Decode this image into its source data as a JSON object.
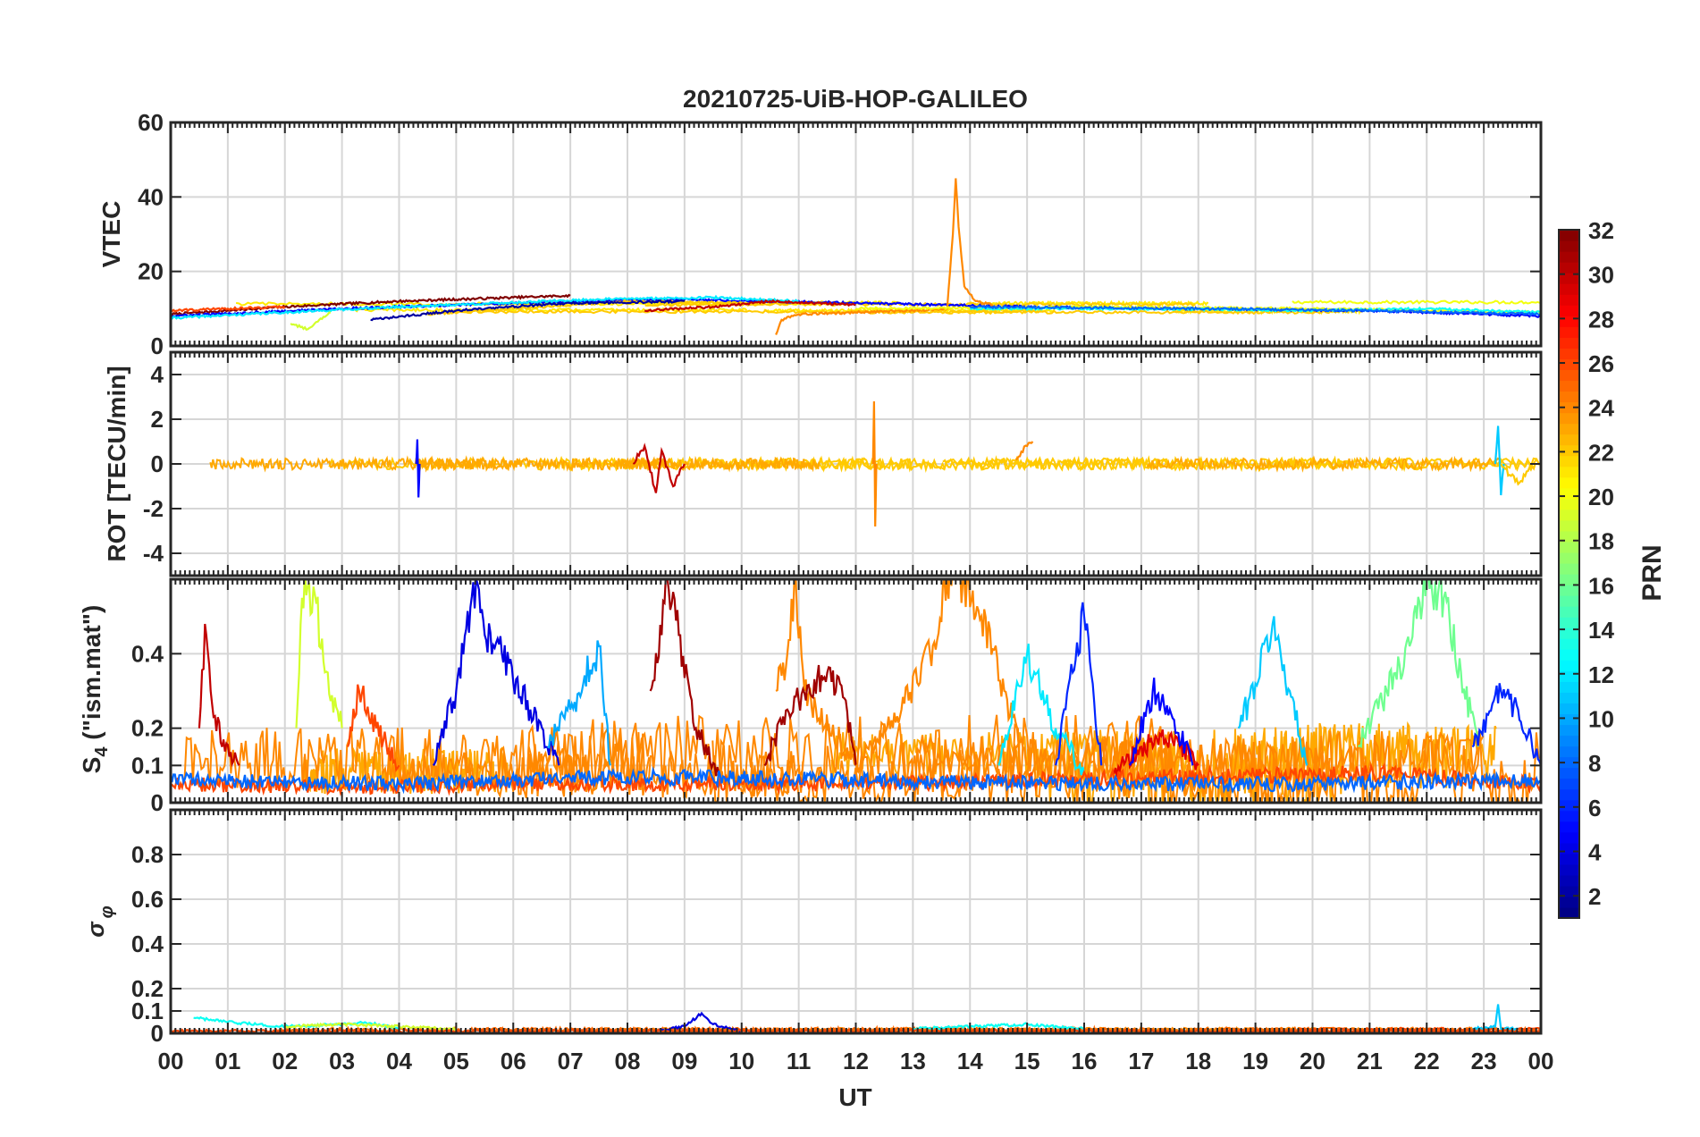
{
  "chart_data": {
    "type": "line",
    "title": "20210725-UiB-HOP-GALILEO",
    "xlabel": "UT",
    "xlim": [
      0,
      24
    ],
    "x_ticks": [
      "00",
      "01",
      "02",
      "03",
      "04",
      "05",
      "06",
      "07",
      "08",
      "09",
      "10",
      "11",
      "12",
      "13",
      "14",
      "15",
      "16",
      "17",
      "18",
      "19",
      "20",
      "21",
      "22",
      "23",
      "00"
    ],
    "colorbar": {
      "label": "PRN",
      "range": [
        1,
        32
      ],
      "colormap": "jet",
      "tick_labels": [
        "2",
        "4",
        "6",
        "8",
        "10",
        "12",
        "14",
        "16",
        "18",
        "20",
        "22",
        "24",
        "26",
        "28",
        "30",
        "32"
      ]
    },
    "panels": [
      {
        "id": "vtec",
        "ylabel": "VTEC",
        "ylim": [
          0,
          60
        ],
        "y_ticks": [
          0,
          20,
          40,
          60
        ],
        "y_tick_labels": [
          "0",
          "20",
          "40",
          "60"
        ],
        "series": [
          {
            "prn": 32,
            "x": [
              0.0,
              2.0,
              4.0,
              6.0,
              7.0
            ],
            "y": [
              8.5,
              10.5,
              12.0,
              13.0,
              13.5
            ]
          },
          {
            "prn": 5,
            "x": [
              0.0,
              3.0,
              6.0,
              9.0,
              12.0,
              15.0,
              18.0,
              21.0,
              24.0
            ],
            "y": [
              8.0,
              10.0,
              11.5,
              12.5,
              11.5,
              10.5,
              10.0,
              9.5,
              8.0
            ]
          },
          {
            "prn": 12,
            "x": [
              0.0,
              2.0,
              4.0,
              7.5,
              9.5,
              11.0
            ],
            "y": [
              7.5,
              9.0,
              10.5,
              12.5,
              13.0,
              12.0
            ]
          },
          {
            "prn": 19,
            "x": [
              2.1,
              2.4,
              2.6,
              2.8
            ],
            "y": [
              6.0,
              4.5,
              7.0,
              9.0
            ]
          },
          {
            "prn": 22,
            "x": [
              4.5,
              6.0,
              8.0,
              10.0
            ],
            "y": [
              8.5,
              10.0,
              12.0,
              11.5
            ]
          },
          {
            "prn": 24,
            "x": [
              10.6,
              10.7,
              11.0,
              12.0,
              13.0,
              13.6,
              13.7,
              13.75,
              13.8,
              13.9,
              14.1,
              14.4
            ],
            "y": [
              3.0,
              7.0,
              8.5,
              9.0,
              9.5,
              10.0,
              30.0,
              45.0,
              32.0,
              16.0,
              12.0,
              11.0
            ]
          },
          {
            "prn": 30,
            "x": [
              8.3,
              9.5,
              10.5,
              12.0
            ],
            "y": [
              9.5,
              10.5,
              12.0,
              11.0
            ]
          },
          {
            "prn": 26,
            "x": [
              0.0,
              1.0,
              2.0
            ],
            "y": [
              9.5,
              10.0,
              10.5
            ]
          },
          {
            "prn": 20,
            "x": [
              12.0,
              16.0,
              20.0,
              24.0
            ],
            "y": [
              10.0,
              10.5,
              10.0,
              9.0
            ]
          },
          {
            "prn": 13,
            "x": [
              14.0,
              17.0,
              20.0,
              22.0,
              24.0
            ],
            "y": [
              10.0,
              10.0,
              9.5,
              10.0,
              9.0
            ]
          },
          {
            "prn": 8,
            "x": [
              14.0,
              18.0,
              21.0,
              24.0
            ],
            "y": [
              10.5,
              10.0,
              9.5,
              8.5
            ]
          },
          {
            "prn": 2,
            "x": [
              3.5,
              5.0,
              7.0,
              9.0
            ],
            "y": [
              7.0,
              9.5,
              11.5,
              12.0
            ]
          }
        ]
      },
      {
        "id": "rot",
        "ylabel": "ROT [TECU/min]",
        "ylim": [
          -5,
          5
        ],
        "y_ticks": [
          -4,
          -2,
          0,
          2,
          4
        ],
        "y_tick_labels": [
          "-4",
          "-2",
          "0",
          "2",
          "4"
        ],
        "series": [
          {
            "prn": 5,
            "x": [
              4.3,
              4.32,
              4.34,
              4.36
            ],
            "y": [
              0.0,
              1.1,
              -1.5,
              0.0
            ]
          },
          {
            "prn": 30,
            "x": [
              8.1,
              8.3,
              8.5,
              8.6,
              8.8,
              9.0
            ],
            "y": [
              0.0,
              0.8,
              -1.3,
              0.6,
              -1.0,
              0.0
            ]
          },
          {
            "prn": 24,
            "x": [
              12.3,
              12.32,
              12.34,
              12.36
            ],
            "y": [
              0.0,
              2.8,
              -2.8,
              0.0
            ]
          },
          {
            "prn": 24,
            "x": [
              14.8,
              15.0,
              15.1
            ],
            "y": [
              0.2,
              0.8,
              1.0
            ]
          },
          {
            "prn": 11,
            "x": [
              23.2,
              23.25,
              23.3,
              23.35
            ],
            "y": [
              0.0,
              1.7,
              -1.4,
              0.0
            ]
          },
          {
            "prn": 22,
            "x": [
              23.3,
              23.6,
              23.9
            ],
            "y": [
              0.0,
              -0.9,
              0.0
            ]
          }
        ]
      },
      {
        "id": "s4",
        "ylabel": "S4 (\"ism.mat\")",
        "ylabel_main": "S",
        "ylabel_sub": "4",
        "ylabel_rest": " (\"ism.mat\")",
        "ylim": [
          0,
          0.6
        ],
        "y_ticks": [
          0,
          0.1,
          0.2,
          0.4
        ],
        "y_tick_labels": [
          "0",
          "0.1",
          "0.2",
          "0.4"
        ],
        "series": [
          {
            "prn": 30,
            "x": [
              0.5,
              0.6,
              0.7,
              0.9,
              1.2
            ],
            "y": [
              0.2,
              0.48,
              0.3,
              0.15,
              0.1
            ]
          },
          {
            "prn": 19,
            "x": [
              2.2,
              2.3,
              2.5,
              2.7,
              3.0
            ],
            "y": [
              0.2,
              0.55,
              0.58,
              0.35,
              0.2
            ]
          },
          {
            "prn": 26,
            "x": [
              3.1,
              3.3,
              3.6,
              4.0
            ],
            "y": [
              0.15,
              0.3,
              0.2,
              0.1
            ]
          },
          {
            "prn": 4,
            "x": [
              4.6,
              5.0,
              5.35,
              5.5,
              5.8,
              6.3,
              6.8
            ],
            "y": [
              0.1,
              0.3,
              0.6,
              0.45,
              0.4,
              0.25,
              0.1
            ]
          },
          {
            "prn": 10,
            "x": [
              6.6,
              7.0,
              7.5,
              7.7
            ],
            "y": [
              0.15,
              0.25,
              0.42,
              0.1
            ]
          },
          {
            "prn": 31,
            "x": [
              8.4,
              8.6,
              8.7,
              8.9,
              9.2,
              9.6
            ],
            "y": [
              0.3,
              0.45,
              0.6,
              0.45,
              0.2,
              0.08
            ]
          },
          {
            "prn": 24,
            "x": [
              10.6,
              10.8,
              10.95,
              11.1,
              11.5,
              12.0
            ],
            "y": [
              0.3,
              0.4,
              0.6,
              0.3,
              0.2,
              0.1
            ]
          },
          {
            "prn": 31,
            "x": [
              10.4,
              10.8,
              11.5,
              11.8,
              12.0
            ],
            "y": [
              0.1,
              0.25,
              0.35,
              0.28,
              0.1
            ]
          },
          {
            "prn": 24,
            "x": [
              12.0,
              12.8,
              13.3,
              13.6,
              13.9,
              14.2,
              14.6,
              15.0
            ],
            "y": [
              0.1,
              0.25,
              0.4,
              0.6,
              0.6,
              0.5,
              0.3,
              0.1
            ]
          },
          {
            "prn": 12,
            "x": [
              14.5,
              15.0,
              15.5,
              16.0
            ],
            "y": [
              0.1,
              0.4,
              0.2,
              0.08
            ]
          },
          {
            "prn": 6,
            "x": [
              15.5,
              15.8,
              16.0,
              16.3
            ],
            "y": [
              0.1,
              0.35,
              0.5,
              0.1
            ]
          },
          {
            "prn": 29,
            "x": [
              16.5,
              17.0,
              17.5,
              18.0
            ],
            "y": [
              0.08,
              0.15,
              0.18,
              0.1
            ]
          },
          {
            "prn": 5,
            "x": [
              16.8,
              17.2,
              17.5,
              17.9
            ],
            "y": [
              0.1,
              0.3,
              0.25,
              0.1
            ]
          },
          {
            "prn": 11,
            "x": [
              18.7,
              19.0,
              19.3,
              19.6,
              19.9
            ],
            "y": [
              0.2,
              0.32,
              0.48,
              0.3,
              0.1
            ]
          },
          {
            "prn": 16,
            "x": [
              20.8,
              21.3,
              21.7,
              22.0,
              22.3,
              22.6,
              22.9
            ],
            "y": [
              0.15,
              0.3,
              0.42,
              0.6,
              0.55,
              0.35,
              0.15
            ]
          },
          {
            "prn": 6,
            "x": [
              22.8,
              23.3,
              23.6,
              24.0
            ],
            "y": [
              0.15,
              0.3,
              0.25,
              0.1
            ]
          },
          {
            "prn": 26,
            "x": [
              0.0,
              3.0,
              6.0,
              9.0,
              12.0,
              15.0,
              18.0,
              21.0,
              24.0
            ],
            "y": [
              0.05,
              0.04,
              0.05,
              0.05,
              0.05,
              0.06,
              0.07,
              0.08,
              0.05
            ]
          },
          {
            "prn": 8,
            "x": [
              0.0,
              4.0,
              8.0,
              12.0,
              16.0,
              20.0,
              24.0
            ],
            "y": [
              0.06,
              0.05,
              0.07,
              0.06,
              0.05,
              0.05,
              0.06
            ]
          }
        ]
      },
      {
        "id": "sigma_phi",
        "ylabel": "σφ",
        "ylabel_main": "σ",
        "ylabel_sub": "φ",
        "ylim": [
          0,
          1.0
        ],
        "y_ticks": [
          0,
          0.1,
          0.2,
          0.4,
          0.6,
          0.8
        ],
        "y_tick_labels": [
          "0",
          "0.1",
          "0.2",
          "0.4",
          "0.6",
          "0.8"
        ],
        "series": [
          {
            "prn": 13,
            "x": [
              0.4,
              1.0,
              2.0,
              3.0,
              3.4,
              4.0
            ],
            "y": [
              0.07,
              0.05,
              0.03,
              0.04,
              0.05,
              0.02
            ]
          },
          {
            "prn": 19,
            "x": [
              2.0,
              3.0,
              4.0,
              5.0
            ],
            "y": [
              0.03,
              0.04,
              0.03,
              0.02
            ]
          },
          {
            "prn": 4,
            "x": [
              8.5,
              9.0,
              9.3,
              9.5,
              10.0
            ],
            "y": [
              0.01,
              0.03,
              0.09,
              0.04,
              0.01
            ]
          },
          {
            "prn": 13,
            "x": [
              13.0,
              14.0,
              15.0,
              16.0
            ],
            "y": [
              0.02,
              0.03,
              0.04,
              0.02
            ]
          },
          {
            "prn": 11,
            "x": [
              22.8,
              23.2,
              23.25,
              23.3,
              23.6
            ],
            "y": [
              0.02,
              0.03,
              0.13,
              0.02,
              0.02
            ]
          },
          {
            "prn": 26,
            "x": [
              0.0,
              6.0,
              12.0,
              18.0,
              24.0
            ],
            "y": [
              0.01,
              0.01,
              0.01,
              0.01,
              0.01
            ]
          }
        ]
      }
    ]
  }
}
